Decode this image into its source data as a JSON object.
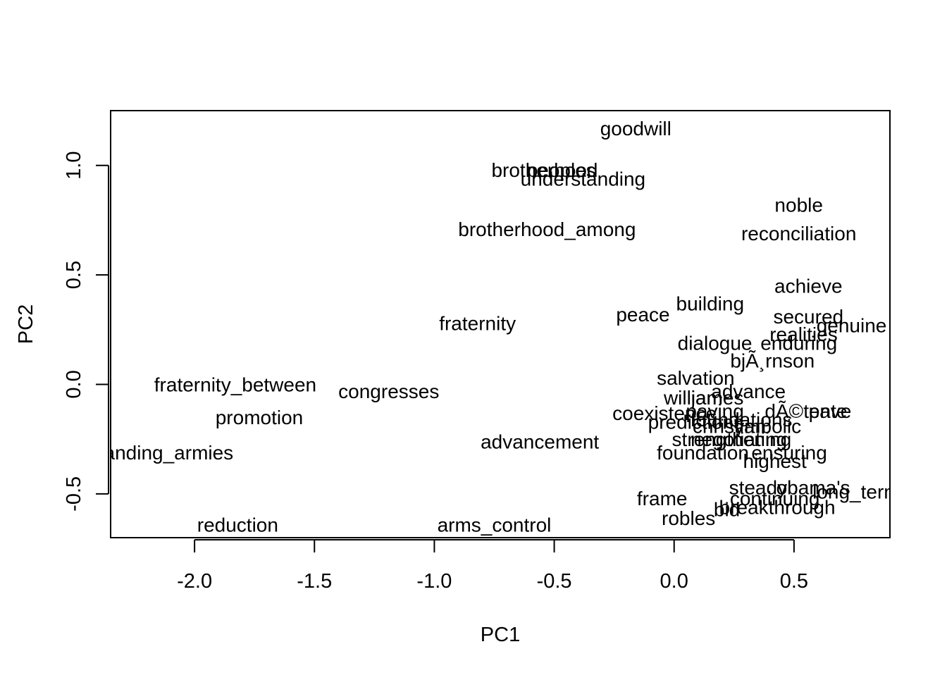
{
  "chart_data": {
    "type": "scatter",
    "title": "",
    "xlabel": "PC1",
    "ylabel": "PC2",
    "xlim": [
      -2.35,
      0.9
    ],
    "ylim": [
      -0.7,
      1.25
    ],
    "x_ticks": [
      -2.0,
      -1.5,
      -1.0,
      -0.5,
      0.0,
      0.5
    ],
    "x_tick_labels": [
      "-2.0",
      "-1.5",
      "-1.0",
      "-0.5",
      "0.0",
      "0.5"
    ],
    "y_ticks": [
      -0.5,
      0.0,
      0.5,
      1.0
    ],
    "y_tick_labels": [
      "-0.5",
      "0.0",
      "0.5",
      "1.0"
    ],
    "grid": false,
    "legend": "none",
    "marker": "text labels",
    "points": [
      {
        "label": "goodwill",
        "x": -0.16,
        "y": 1.17
      },
      {
        "label": "brotherhood",
        "x": -0.54,
        "y": 0.98
      },
      {
        "label": "peoples",
        "x": -0.47,
        "y": 0.98
      },
      {
        "label": "understanding",
        "x": -0.38,
        "y": 0.94
      },
      {
        "label": "brotherhood_among",
        "x": -0.53,
        "y": 0.71
      },
      {
        "label": "noble",
        "x": 0.52,
        "y": 0.82
      },
      {
        "label": "reconciliation",
        "x": 0.52,
        "y": 0.69
      },
      {
        "label": "achieve",
        "x": 0.56,
        "y": 0.45
      },
      {
        "label": "building",
        "x": 0.15,
        "y": 0.37
      },
      {
        "label": "peace",
        "x": -0.13,
        "y": 0.32
      },
      {
        "label": "secured",
        "x": 0.56,
        "y": 0.31
      },
      {
        "label": "fraternity",
        "x": -0.82,
        "y": 0.28
      },
      {
        "label": "genuine",
        "x": 0.74,
        "y": 0.27
      },
      {
        "label": "realities",
        "x": 0.54,
        "y": 0.23
      },
      {
        "label": "dialogue",
        "x": 0.17,
        "y": 0.19
      },
      {
        "label": "enduring",
        "x": 0.52,
        "y": 0.19
      },
      {
        "label": "bjÃ¸rnson",
        "x": 0.41,
        "y": 0.11
      },
      {
        "label": "salvation",
        "x": 0.09,
        "y": 0.03
      },
      {
        "label": "fraternity_between",
        "x": -1.83,
        "y": 0.0
      },
      {
        "label": "congresses",
        "x": -1.19,
        "y": -0.03
      },
      {
        "label": "advance",
        "x": 0.31,
        "y": -0.03
      },
      {
        "label": "william",
        "x": 0.08,
        "y": -0.06
      },
      {
        "label": "james",
        "x": 0.18,
        "y": -0.06
      },
      {
        "label": "promotion",
        "x": -1.73,
        "y": -0.15
      },
      {
        "label": "coexistence",
        "x": -0.04,
        "y": -0.13
      },
      {
        "label": "paving",
        "x": 0.17,
        "y": -0.12
      },
      {
        "label": "dÃ©tente",
        "x": 0.55,
        "y": -0.12
      },
      {
        "label": "pave",
        "x": 0.65,
        "y": -0.12
      },
      {
        "label": "predictions",
        "x": 0.09,
        "y": -0.17
      },
      {
        "label": "foundations",
        "x": 0.28,
        "y": -0.16
      },
      {
        "label": "symbolic",
        "x": 0.37,
        "y": -0.19
      },
      {
        "label": "christian",
        "x": 0.23,
        "y": -0.19
      },
      {
        "label": "strengthening",
        "x": 0.24,
        "y": -0.25
      },
      {
        "label": "negotiating",
        "x": 0.27,
        "y": -0.25
      },
      {
        "label": "advancement",
        "x": -0.56,
        "y": -0.26
      },
      {
        "label": "foundation",
        "x": 0.12,
        "y": -0.31
      },
      {
        "label": "ensuring",
        "x": 0.48,
        "y": -0.31
      },
      {
        "label": "highest",
        "x": 0.42,
        "y": -0.35
      },
      {
        "label": "standing_armies",
        "x": -2.14,
        "y": -0.31
      },
      {
        "label": "steady",
        "x": 0.35,
        "y": -0.47
      },
      {
        "label": "obama's",
        "x": 0.58,
        "y": -0.47
      },
      {
        "label": "long_term",
        "x": 0.76,
        "y": -0.49
      },
      {
        "label": "continuing",
        "x": 0.42,
        "y": -0.52
      },
      {
        "label": "frame",
        "x": -0.05,
        "y": -0.52
      },
      {
        "label": "breakthrough",
        "x": 0.43,
        "y": -0.56
      },
      {
        "label": "bid",
        "x": 0.22,
        "y": -0.57
      },
      {
        "label": "robles",
        "x": 0.06,
        "y": -0.61
      },
      {
        "label": "reduction",
        "x": -1.82,
        "y": -0.64
      },
      {
        "label": "arms_control",
        "x": -0.75,
        "y": -0.64
      }
    ]
  }
}
